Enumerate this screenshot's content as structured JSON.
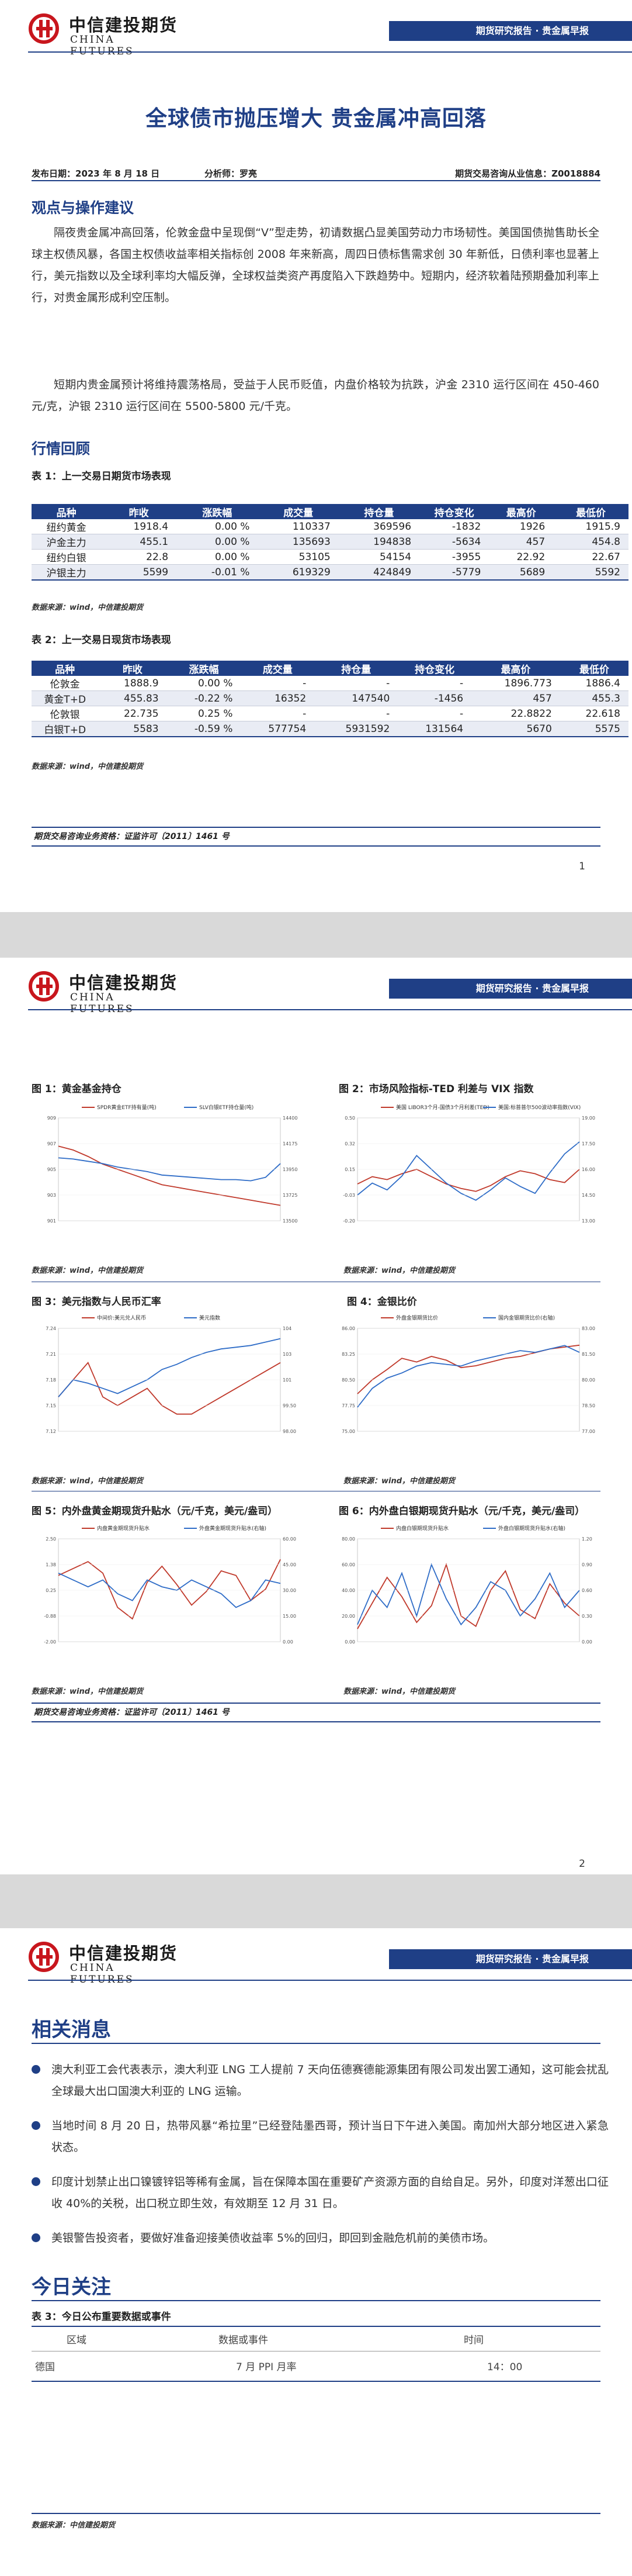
{
  "brand": {
    "cn": "中信建投期货",
    "en": "CHINA FUTURES",
    "band": "期货研究报告 · 贵金属早报"
  },
  "report": {
    "title": "全球债市抛压增大 贵金属冲高回落",
    "date": "发布日期：2023 年 8 月 18 日",
    "analyst": "分析师：罗亮",
    "license": "期货交易咨询从业信息：Z0018884"
  },
  "sections": {
    "view": "观点与操作建议",
    "market": "行情回顾"
  },
  "paragraphs": [
    "隔夜贵金属冲高回落，伦敦金盘中呈现倒“V”型走势，初请数据凸显美国劳动力市场韧性。美国国债抛售助长全球主权债风暴，各国主权债收益率相关指标创 2008 年来新高，周四日债标售需求创 30 年新低，日债利率也显著上行，美元指数以及全球利率均大幅反弹，全球权益类资产再度陷入下跌趋势中。短期内，经济软着陆预期叠加利率上行，对贵金属形成利空压制。",
    "短期内贵金属预计将维持震荡格局，受益于人民币贬值，内盘价格较为抗跌，沪金 2310 运行区间在 450-460 元/克，沪银 2310 运行区间在 5500-5800 元/千克。"
  ],
  "table1": {
    "caption": "表 1：上一交易日期货市场表现",
    "headers": [
      "品种",
      "昨收",
      "涨跌幅",
      "成交量",
      "持仓量",
      "持仓变化",
      "最高价",
      "最低价"
    ],
    "rows": [
      [
        "纽约黄金",
        "1918.4",
        "0.00 %",
        "110337",
        "369596",
        "-1832",
        "1926",
        "1915.9"
      ],
      [
        "沪金主力",
        "455.1",
        "0.00 %",
        "135693",
        "194838",
        "-5634",
        "457",
        "454.8"
      ],
      [
        "纽约白银",
        "22.8",
        "0.00 %",
        "53105",
        "54154",
        "-3955",
        "22.92",
        "22.67"
      ],
      [
        "沪银主力",
        "5599",
        "-0.01 %",
        "619329",
        "424849",
        "-5779",
        "5689",
        "5592"
      ]
    ],
    "source": "数据来源：wind，中信建投期货"
  },
  "table2": {
    "caption": "表 2：上一交易日现货市场表现",
    "headers": [
      "品种",
      "昨收",
      "涨跌幅",
      "成交量",
      "持仓量",
      "持仓变化",
      "最高价",
      "最低价"
    ],
    "rows": [
      [
        "伦敦金",
        "1888.9",
        "0.00 %",
        "-",
        "-",
        "-",
        "1896.773",
        "1886.4"
      ],
      [
        "黄金T+D",
        "455.83",
        "-0.22 %",
        "16352",
        "147540",
        "-1456",
        "457",
        "455.3"
      ],
      [
        "伦敦银",
        "22.735",
        "0.25 %",
        "-",
        "-",
        "-",
        "22.8822",
        "22.618"
      ],
      [
        "白银T+D",
        "5583",
        "-0.59 %",
        "577754",
        "5931592",
        "131564",
        "5670",
        "5575"
      ]
    ],
    "source": "数据来源：wind，中信建投期货"
  },
  "footer": {
    "license": "期货交易咨询业务资格：证监许可〔2011〕1461 号",
    "page1": "1",
    "page2": "2"
  },
  "colors": {
    "brand_blue": "#1f3f86",
    "brand_red": "#c8161d",
    "line_red": "#c0392b",
    "line_blue": "#2e6cc7"
  },
  "charts": [
    {
      "caption": "图 1：黄金基金持仓",
      "source": "数据来源：wind，中信建投期货",
      "legend": [
        "SPDR黄金ETF持有量(吨)",
        "SLV白银ETF持仓量(吨)"
      ]
    },
    {
      "caption": "图 2：市场风险指标-TED 利差与 VIX 指数",
      "source": "数据来源：wind，中信建投期货",
      "legend": [
        "美国 LIBOR3个月-国债3个月利差(TED)",
        "美国:标普普尔500波动率指数(VIX)"
      ]
    },
    {
      "caption": "图 3：美元指数与人民币汇率",
      "source": "数据来源：wind，中信建投期货",
      "legend": [
        "中间价:美元兑人民币",
        "美元指数"
      ]
    },
    {
      "caption": "图 4：金银比价",
      "source": "数据来源：wind，中信建投期货",
      "legend": [
        "外盘金银期货比价",
        "国内金银期货比价(右轴)"
      ]
    },
    {
      "caption": "图 5：内外盘黄金期现货升贴水（元/千克，美元/盎司）",
      "source": "数据来源：wind，中信建投期货",
      "legend": [
        "内盘黄金期现货升贴水",
        "外盘黄金期现货升贴水(右轴)"
      ]
    },
    {
      "caption": "图 6：内外盘白银期现货升贴水（元/千克，美元/盎司）",
      "source": "数据来源：wind，中信建投期货",
      "legend": [
        "内盘白银期现货升贴水",
        "外盘白银期现货升贴水(右轴)"
      ]
    }
  ],
  "chart_data": [
    {
      "type": "line",
      "title": "图 1：黄金基金持仓",
      "series": [
        {
          "name": "SPDR黄金ETF持有量(吨)",
          "values": [
            906.8,
            906.5,
            906.0,
            905.4,
            905.0,
            904.6,
            904.2,
            903.8,
            903.6,
            903.4,
            903.2,
            903.0,
            902.8,
            902.6,
            902.4,
            902.2
          ]
        },
        {
          "name": "SLV白银ETF持仓量(吨)",
          "values": [
            14050,
            14040,
            14020,
            14000,
            13970,
            13950,
            13930,
            13900,
            13890,
            13880,
            13870,
            13860,
            13860,
            13850,
            13880,
            14000
          ]
        }
      ],
      "ylim": [
        901.0,
        909.0
      ],
      "y2lim": [
        13500,
        14400
      ]
    },
    {
      "type": "line",
      "title": "图 2：市场风险指标-TED 利差与 VIX 指数",
      "series": [
        {
          "name": "美国 LIBOR3个月-国债3个月利差(TED)",
          "values": [
            0.05,
            0.1,
            0.08,
            0.12,
            0.15,
            0.1,
            0.05,
            0.02,
            0.0,
            0.04,
            0.1,
            0.14,
            0.12,
            0.08,
            0.06,
            0.15
          ]
        },
        {
          "name": "美国:标普普尔500波动率指数(VIX)",
          "values": [
            14.5,
            15.2,
            14.8,
            15.6,
            16.8,
            16.0,
            15.2,
            14.6,
            14.2,
            14.8,
            15.5,
            15.0,
            14.6,
            15.8,
            16.9,
            17.6
          ]
        }
      ],
      "ylim": [
        -0.2,
        0.5
      ],
      "y2lim": [
        13,
        19
      ]
    },
    {
      "type": "line",
      "title": "图 3：美元指数与人民币汇率",
      "series": [
        {
          "name": "中间价:美元兑人民币",
          "values": [
            7.16,
            7.18,
            7.2,
            7.16,
            7.15,
            7.16,
            7.17,
            7.15,
            7.14,
            7.14,
            7.15,
            7.16,
            7.17,
            7.18,
            7.19,
            7.2
          ]
        },
        {
          "name": "美元指数",
          "values": [
            100.0,
            101.0,
            100.8,
            100.5,
            100.2,
            100.6,
            101.0,
            101.6,
            101.9,
            102.3,
            102.6,
            102.8,
            102.9,
            103.0,
            103.2,
            103.4
          ]
        }
      ],
      "ylim": [
        7.12,
        7.24
      ],
      "y2lim": [
        98,
        104
      ]
    },
    {
      "type": "line",
      "title": "图 4：金银比价",
      "series": [
        {
          "name": "外盘金银期货比价",
          "values": [
            79.0,
            80.5,
            81.6,
            82.8,
            82.4,
            83.0,
            82.6,
            81.8,
            82.0,
            82.4,
            82.8,
            83.0,
            83.4,
            83.8,
            84.0,
            84.2
          ]
        },
        {
          "name": "国内金银期货比价(右轴)",
          "values": [
            78.4,
            79.5,
            80.1,
            80.4,
            80.8,
            81.0,
            80.9,
            80.8,
            81.1,
            81.3,
            81.5,
            81.7,
            81.6,
            81.8,
            82.0,
            81.6
          ]
        }
      ],
      "ylim": [
        75,
        86
      ],
      "y2lim": [
        77,
        83
      ]
    },
    {
      "type": "line",
      "title": "图 5：内外盘黄金期现货升贴水（元/千克，美元/盎司）",
      "series": [
        {
          "name": "内盘黄金期现货升贴水",
          "values": [
            0.9,
            1.2,
            1.5,
            1.0,
            -0.5,
            -1.0,
            0.6,
            1.3,
            0.5,
            -0.4,
            0.2,
            1.1,
            0.9,
            -0.2,
            0.3,
            1.6
          ]
        },
        {
          "name": "外盘黄金期现货升贴水(右轴)",
          "values": [
            40,
            36,
            32,
            36,
            28,
            24,
            36,
            32,
            30,
            36,
            32,
            28,
            20,
            24,
            36,
            34
          ]
        }
      ],
      "ylim": [
        -2.0,
        2.5
      ],
      "y2lim": [
        0,
        60
      ]
    },
    {
      "type": "line",
      "title": "图 6：内外盘白银期现货升贴水（元/千克，美元/盎司）",
      "series": [
        {
          "name": "内盘白银期现货升贴水",
          "values": [
            10,
            30,
            50,
            35,
            15,
            28,
            60,
            20,
            12,
            40,
            55,
            25,
            18,
            45,
            30,
            20
          ]
        },
        {
          "name": "外盘白银期现货升贴水(右轴)",
          "values": [
            0.2,
            0.6,
            0.4,
            0.8,
            0.3,
            0.9,
            0.5,
            0.2,
            0.4,
            0.7,
            0.6,
            0.3,
            0.5,
            0.8,
            0.4,
            0.6
          ]
        }
      ],
      "ylim": [
        0,
        80
      ],
      "y2lim": [
        0,
        1.2
      ]
    }
  ],
  "page3": {
    "h_news": "相关消息",
    "news": [
      "澳大利亚工会代表表示，澳大利亚 LNG 工人提前 7 天向伍德赛德能源集团有限公司发出罢工通知，这可能会扰乱全球最大出口国澳大利亚的 LNG 运输。",
      "当地时间 8 月 20 日，热带风暴“希拉里”已经登陆墨西哥，预计当日下午进入美国。南加州大部分地区进入紧急状态。",
      "印度计划禁止出口镍镀锌铝等稀有金属，旨在保障本国在重要矿产资源方面的自给自足。另外，印度对洋葱出口征收 40%的关税，出口税立即生效，有效期至 12 月 31 日。",
      "美银警告投资者，要做好准备迎接美债收益率 5%的回归，即回到金融危机前的美债市场。"
    ],
    "h_today": "今日关注",
    "table3_caption": "表 3：今日公布重要数据或事件",
    "table3_headers": [
      "区域",
      "数据或事件",
      "时间"
    ],
    "table3_rows": [
      [
        "德国",
        "7 月 PPI 月率",
        "14：00"
      ]
    ],
    "source": "数据来源：中信建投期货"
  }
}
